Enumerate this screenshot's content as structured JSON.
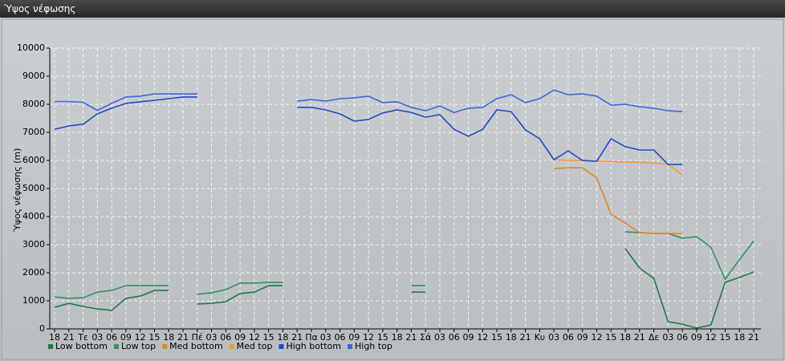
{
  "window": {
    "title": "Ύψος νέφωσης"
  },
  "chart_data": {
    "type": "line",
    "y_label": "Ύψος νέφωσης (m)",
    "categories": [
      "18",
      "21",
      "Τε",
      "03",
      "06",
      "09",
      "12",
      "15",
      "18",
      "21",
      "Πέ",
      "03",
      "06",
      "09",
      "12",
      "15",
      "18",
      "21",
      "Πα",
      "03",
      "06",
      "09",
      "12",
      "15",
      "18",
      "21",
      "Σά",
      "03",
      "06",
      "09",
      "12",
      "15",
      "18",
      "21",
      "Κυ",
      "03",
      "06",
      "09",
      "12",
      "15",
      "18",
      "21",
      "Δε",
      "03",
      "06",
      "09",
      "12",
      "15",
      "18",
      "21"
    ],
    "ylim": [
      0,
      10000
    ],
    "yticks": [
      0,
      1000,
      2000,
      3000,
      4000,
      5000,
      6000,
      7000,
      8000,
      9000,
      10000
    ],
    "grid": true,
    "legend": "bottom-left",
    "series": [
      {
        "name": "Low bottom",
        "color": "#1f7a4a",
        "values": [
          770,
          910,
          800,
          710,
          660,
          1090,
          1170,
          1370,
          1370,
          null,
          890,
          910,
          970,
          1260,
          1310,
          1540,
          1540,
          null,
          null,
          null,
          null,
          null,
          null,
          null,
          null,
          1310,
          1310,
          null,
          null,
          null,
          null,
          null,
          null,
          null,
          null,
          null,
          null,
          null,
          null,
          null,
          2860,
          2170,
          1800,
          260,
          170,
          30,
          140,
          1660,
          1830,
          2030
        ]
      },
      {
        "name": "Low top",
        "color": "#2e9460",
        "values": [
          1140,
          1090,
          1110,
          1310,
          1370,
          1540,
          1540,
          1540,
          1540,
          null,
          1230,
          1290,
          1400,
          1630,
          1630,
          1660,
          1660,
          null,
          null,
          null,
          null,
          null,
          null,
          null,
          null,
          1540,
          1540,
          null,
          null,
          null,
          null,
          null,
          null,
          null,
          null,
          null,
          null,
          null,
          null,
          null,
          3460,
          3430,
          3400,
          3400,
          3230,
          3290,
          2910,
          1770,
          2460,
          3140
        ]
      },
      {
        "name": "Med bottom",
        "color": "#e0862a",
        "values": [
          null,
          null,
          null,
          null,
          null,
          null,
          null,
          null,
          null,
          null,
          null,
          null,
          null,
          null,
          null,
          null,
          null,
          null,
          null,
          null,
          null,
          null,
          null,
          null,
          null,
          null,
          null,
          null,
          null,
          null,
          null,
          null,
          null,
          null,
          null,
          5710,
          5740,
          5740,
          5370,
          4090,
          3770,
          3430,
          3400,
          3400,
          3400,
          null,
          null,
          null,
          null,
          null
        ]
      },
      {
        "name": "Med top",
        "color": "#f09a3c",
        "values": [
          null,
          null,
          null,
          null,
          null,
          null,
          null,
          null,
          null,
          null,
          null,
          null,
          null,
          null,
          null,
          null,
          null,
          null,
          null,
          null,
          null,
          null,
          null,
          null,
          null,
          null,
          null,
          null,
          null,
          null,
          null,
          null,
          null,
          null,
          null,
          6030,
          6000,
          6000,
          5970,
          5970,
          5940,
          5940,
          5910,
          5860,
          5490,
          null,
          null,
          null,
          null,
          null
        ]
      },
      {
        "name": "High bottom",
        "color": "#2448c8",
        "values": [
          7110,
          7230,
          7290,
          7660,
          7860,
          8030,
          8090,
          8140,
          8200,
          8260,
          8260,
          null,
          null,
          null,
          null,
          null,
          null,
          7890,
          7890,
          7800,
          7660,
          7400,
          7460,
          7690,
          7800,
          7710,
          7540,
          7630,
          7110,
          6860,
          7110,
          7800,
          7740,
          7090,
          6770,
          6030,
          6340,
          6000,
          5970,
          6770,
          6490,
          6370,
          6370,
          5860,
          5860,
          null,
          null,
          null,
          null,
          null
        ]
      },
      {
        "name": "High top",
        "color": "#3f66dc",
        "values": [
          8100,
          8100,
          8070,
          7780,
          8030,
          8260,
          8290,
          8370,
          8370,
          8370,
          8370,
          null,
          null,
          null,
          null,
          null,
          null,
          8110,
          8170,
          8110,
          8200,
          8230,
          8290,
          8060,
          8090,
          7890,
          7770,
          7940,
          7710,
          7860,
          7890,
          8200,
          8340,
          8060,
          8200,
          8510,
          8340,
          8370,
          8290,
          7970,
          8000,
          7910,
          7860,
          7770,
          7740,
          null,
          null,
          null,
          null,
          null
        ]
      }
    ]
  }
}
